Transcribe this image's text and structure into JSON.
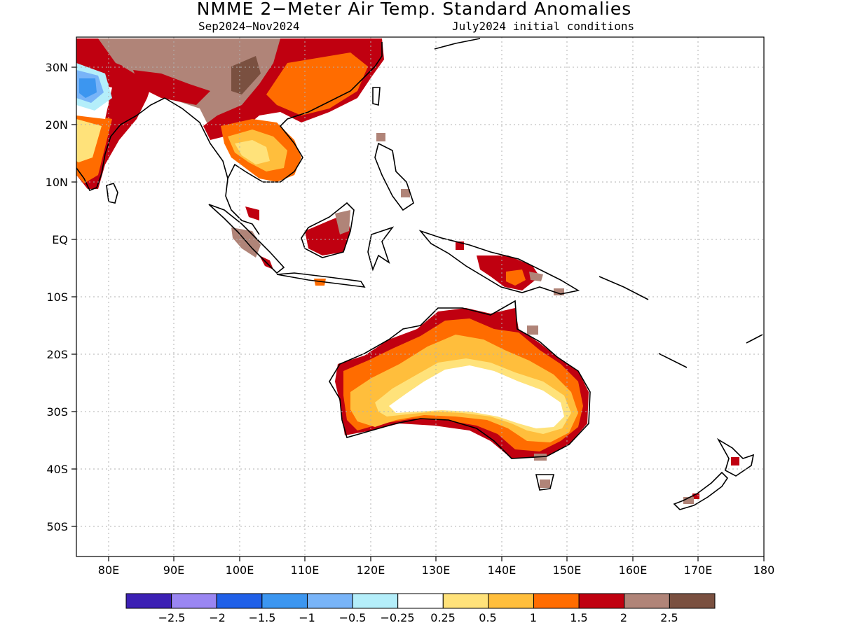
{
  "title": "NMME 2−Meter Air Temp. Standard Anomalies",
  "subtitle_left": "Sep2024−Nov2024",
  "subtitle_right": "July2024 initial conditions",
  "map": {
    "lon_range": [
      75,
      180
    ],
    "lat_range": [
      -55,
      35
    ],
    "lon_ticks": [
      "80E",
      "90E",
      "100E",
      "110E",
      "120E",
      "130E",
      "140E",
      "150E",
      "160E",
      "170E",
      "180"
    ],
    "lat_ticks": [
      "30N",
      "20N",
      "10N",
      "EQ",
      "10S",
      "20S",
      "30S",
      "40S",
      "50S"
    ],
    "gridlines": true
  },
  "legend": {
    "labels": [
      "−2.5",
      "−2",
      "−1.5",
      "−1",
      "−0.5",
      "−0.25",
      "0.25",
      "0.5",
      "1",
      "1.5",
      "2",
      "2.5"
    ],
    "colors": [
      "#3c20b4",
      "#9a86f2",
      "#2060e8",
      "#3c96f0",
      "#78b4f8",
      "#b4eefa",
      "#ffffff",
      "#ffe27a",
      "#ffbe3c",
      "#ff6c00",
      "#c00010",
      "#b08478",
      "#7a5040"
    ]
  }
}
